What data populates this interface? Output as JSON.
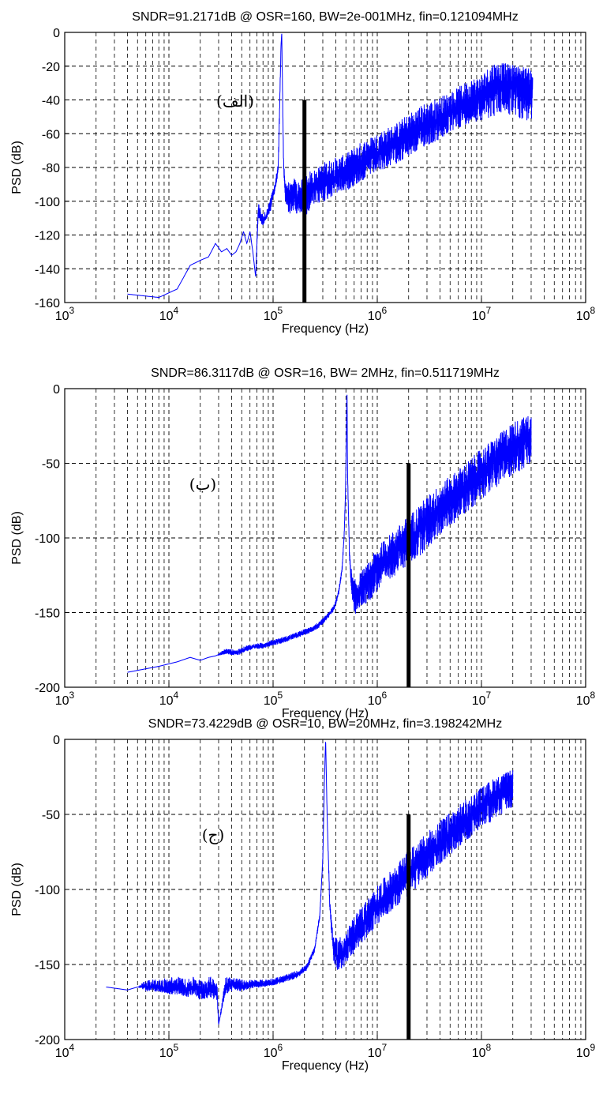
{
  "colors": {
    "psd_line": "#0000ff",
    "bandwidth_marker": "#000000",
    "grid": "#000000"
  },
  "chart_data": [
    {
      "type": "line",
      "title": "SNDR=91.2171dB @ OSR=160, BW=2e-001MHz, fin=0.121094MHz",
      "xlabel": "Frequency (Hz)",
      "ylabel": "PSD (dB)",
      "xscale": "log",
      "xlim": [
        1000,
        100000000
      ],
      "ylim": [
        -160,
        0
      ],
      "xticks": [
        1000,
        10000,
        100000,
        1000000,
        10000000,
        100000000
      ],
      "xtick_labels": [
        "10^3",
        "10^4",
        "10^5",
        "10^6",
        "10^7",
        "10^8"
      ],
      "yticks": [
        0,
        -20,
        -40,
        -60,
        -80,
        -100,
        -120,
        -140,
        -160
      ],
      "ytick_labels": [
        "0",
        "-20",
        "-40",
        "-60",
        "-80",
        "-100",
        "-120",
        "-140",
        "-160"
      ],
      "grid": true,
      "annotation": "(الف)",
      "bandwidth_marker": {
        "x": 200000,
        "y_top": -40,
        "y_bottom": -160
      },
      "series": [
        {
          "x": [
            4000,
            8000,
            12000,
            16000,
            20000,
            24000,
            28000,
            32000,
            36000,
            40000,
            44000,
            48000,
            52000,
            56000,
            60000,
            64000,
            68000,
            72000,
            80000,
            88000,
            96000,
            104000,
            112000,
            116000,
            119000,
            121000,
            123000,
            126000,
            130000,
            140000,
            150000,
            160000,
            170000,
            185000,
            200000,
            230000,
            270000,
            320000,
            400000,
            500000,
            650000,
            850000,
            1100000,
            1500000,
            2000000,
            2800000,
            4000000,
            5500000,
            7500000,
            10000000,
            13000000,
            16000000,
            20000000,
            25000000,
            31000000
          ],
          "y": [
            -155,
            -157,
            -152,
            -138,
            -135,
            -133,
            -125,
            -130,
            -128,
            -132,
            -130,
            -125,
            -118,
            -125,
            -118,
            -130,
            -145,
            -105,
            -112,
            -108,
            -100,
            -92,
            -80,
            -40,
            -8,
            0,
            -30,
            -78,
            -92,
            -96,
            -98,
            -95,
            -100,
            -98,
            -96,
            -93,
            -90,
            -88,
            -85,
            -83,
            -78,
            -75,
            -70,
            -66,
            -62,
            -56,
            -52,
            -46,
            -42,
            -38,
            -33,
            -30,
            -30,
            -30,
            -32
          ],
          "band_low": [
            -155,
            -157,
            -152,
            -138,
            -135,
            -133,
            -125,
            -130,
            -128,
            -132,
            -130,
            -125,
            -118,
            -125,
            -118,
            -130,
            -145,
            -110,
            -115,
            -110,
            -105,
            -95,
            -85,
            -45,
            -10,
            0,
            -35,
            -80,
            -102,
            -107,
            -108,
            -105,
            -110,
            -108,
            -110,
            -104,
            -102,
            -100,
            -96,
            -94,
            -90,
            -85,
            -82,
            -78,
            -74,
            -68,
            -64,
            -58,
            -54,
            -52,
            -50,
            -48,
            -50,
            -52,
            -55
          ],
          "band_high": [
            -155,
            -157,
            -152,
            -138,
            -135,
            -133,
            -125,
            -130,
            -128,
            -132,
            -130,
            -125,
            -118,
            -125,
            -118,
            -130,
            -145,
            -100,
            -108,
            -104,
            -96,
            -90,
            -76,
            -36,
            -6,
            0,
            -25,
            -74,
            -88,
            -88,
            -90,
            -86,
            -88,
            -88,
            -84,
            -82,
            -80,
            -76,
            -74,
            -72,
            -66,
            -62,
            -58,
            -54,
            -48,
            -42,
            -38,
            -34,
            -28,
            -25,
            -17,
            -18,
            -19,
            -20,
            -22
          ]
        }
      ]
    },
    {
      "type": "line",
      "title": "SNDR=86.3117dB @ OSR=16, BW= 2MHz, fin=0.511719MHz",
      "xlabel": "Frequency (Hz)",
      "ylabel": "PSD (dB)",
      "xscale": "log",
      "xlim": [
        1000,
        100000000
      ],
      "ylim": [
        -200,
        0
      ],
      "xticks": [
        1000,
        10000,
        100000,
        1000000,
        10000000,
        100000000
      ],
      "xtick_labels": [
        "10^3",
        "10^4",
        "10^5",
        "10^6",
        "10^7",
        "10^8"
      ],
      "yticks": [
        0,
        -50,
        -100,
        -150,
        -200
      ],
      "ytick_labels": [
        "0",
        "-50",
        "-100",
        "-150",
        "-200"
      ],
      "grid": true,
      "annotation": "(ب)",
      "bandwidth_marker": {
        "x": 2000000,
        "y_top": -50,
        "y_bottom": -200
      },
      "series": [
        {
          "x": [
            4000,
            8000,
            12000,
            16000,
            20000,
            24000,
            28000,
            35000,
            45000,
            55000,
            65000,
            80000,
            100000,
            130000,
            170000,
            220000,
            280000,
            340000,
            390000,
            430000,
            460000,
            480000,
            495000,
            505000,
            511700,
            520000,
            540000,
            570000,
            600000,
            650000,
            700000,
            800000,
            1000000,
            1300000,
            1700000,
            2200000,
            3000000,
            4000000,
            5500000,
            7500000,
            10000000,
            14000000,
            20000000,
            30000000
          ],
          "y": [
            -190,
            -186,
            -183,
            -180,
            -182,
            -180,
            -179,
            -176,
            -177,
            -174,
            -173,
            -172,
            -170,
            -168,
            -165,
            -162,
            -158,
            -152,
            -146,
            -135,
            -120,
            -100,
            -70,
            -30,
            0,
            -60,
            -110,
            -132,
            -140,
            -138,
            -134,
            -130,
            -120,
            -112,
            -105,
            -98,
            -88,
            -80,
            -72,
            -64,
            -55,
            -47,
            -38,
            -30
          ],
          "band_low": [
            -190,
            -186,
            -183,
            -180,
            -182,
            -180,
            -179,
            -178,
            -179,
            -176,
            -175,
            -174,
            -172,
            -170,
            -167,
            -164,
            -160,
            -154,
            -148,
            -137,
            -122,
            -102,
            -72,
            -32,
            0,
            -62,
            -114,
            -142,
            -152,
            -150,
            -146,
            -144,
            -136,
            -128,
            -122,
            -116,
            -108,
            -98,
            -90,
            -82,
            -74,
            -66,
            -58,
            -52
          ],
          "band_high": [
            -190,
            -186,
            -183,
            -180,
            -182,
            -180,
            -179,
            -174,
            -175,
            -172,
            -171,
            -170,
            -168,
            -166,
            -163,
            -160,
            -156,
            -150,
            -144,
            -133,
            -118,
            -98,
            -68,
            -28,
            0,
            -58,
            -106,
            -124,
            -128,
            -126,
            -122,
            -118,
            -106,
            -98,
            -90,
            -82,
            -72,
            -64,
            -56,
            -48,
            -40,
            -32,
            -22,
            -17
          ]
        }
      ]
    },
    {
      "type": "line",
      "title": "SNDR=73.4229dB @ OSR=10, BW=20MHz, fin=3.198242MHz",
      "xlabel": "Frequency (Hz)",
      "ylabel": "PSD (dB)",
      "xscale": "log",
      "xlim": [
        10000,
        1000000000
      ],
      "ylim": [
        -200,
        0
      ],
      "xticks": [
        10000,
        100000,
        1000000,
        10000000,
        100000000,
        1000000000
      ],
      "xtick_labels": [
        "10^4",
        "10^5",
        "10^6",
        "10^7",
        "10^8",
        "10^9"
      ],
      "yticks": [
        0,
        -50,
        -100,
        -150,
        -200
      ],
      "ytick_labels": [
        "0",
        "-50",
        "-100",
        "-150",
        "-200"
      ],
      "grid": true,
      "annotation": "(ج)",
      "bandwidth_marker": {
        "x": 20000000,
        "y_top": -50,
        "y_bottom": -200
      },
      "series": [
        {
          "x": [
            25000,
            40000,
            50000,
            60000,
            80000,
            100000,
            125000,
            150000,
            175000,
            200000,
            250000,
            290000,
            300000,
            350000,
            400000,
            500000,
            600000,
            800000,
            1000000,
            1300000,
            1700000,
            2100000,
            2500000,
            2800000,
            3000000,
            3100000,
            3198000,
            3300000,
            3500000,
            3800000,
            4200000,
            5000000,
            6500000,
            8500000,
            11000000,
            15000000,
            20000000,
            28000000,
            40000000,
            60000000,
            90000000,
            130000000,
            200000000
          ],
          "y": [
            -165,
            -167,
            -165,
            -165,
            -165,
            -168,
            -166,
            -167,
            -165,
            -168,
            -166,
            -168,
            -190,
            -165,
            -163,
            -165,
            -164,
            -163,
            -162,
            -160,
            -157,
            -152,
            -140,
            -118,
            -80,
            -30,
            0,
            -50,
            -110,
            -140,
            -145,
            -140,
            -128,
            -118,
            -108,
            -98,
            -90,
            -80,
            -70,
            -58,
            -48,
            -38,
            -30
          ],
          "band_low": [
            -165,
            -167,
            -165,
            -168,
            -168,
            -170,
            -170,
            -172,
            -170,
            -174,
            -172,
            -174,
            -190,
            -170,
            -168,
            -168,
            -166,
            -165,
            -164,
            -162,
            -159,
            -154,
            -142,
            -120,
            -82,
            -32,
            0,
            -52,
            -114,
            -148,
            -156,
            -150,
            -140,
            -130,
            -120,
            -112,
            -104,
            -94,
            -84,
            -72,
            -62,
            -54,
            -46
          ],
          "band_high": [
            -165,
            -167,
            -165,
            -160,
            -160,
            -158,
            -158,
            -160,
            -158,
            -160,
            -158,
            -160,
            -190,
            -158,
            -158,
            -160,
            -160,
            -160,
            -159,
            -157,
            -154,
            -150,
            -138,
            -116,
            -78,
            -28,
            0,
            -48,
            -106,
            -132,
            -132,
            -128,
            -114,
            -104,
            -94,
            -84,
            -74,
            -64,
            -54,
            -44,
            -34,
            -26,
            -20
          ]
        }
      ]
    }
  ]
}
